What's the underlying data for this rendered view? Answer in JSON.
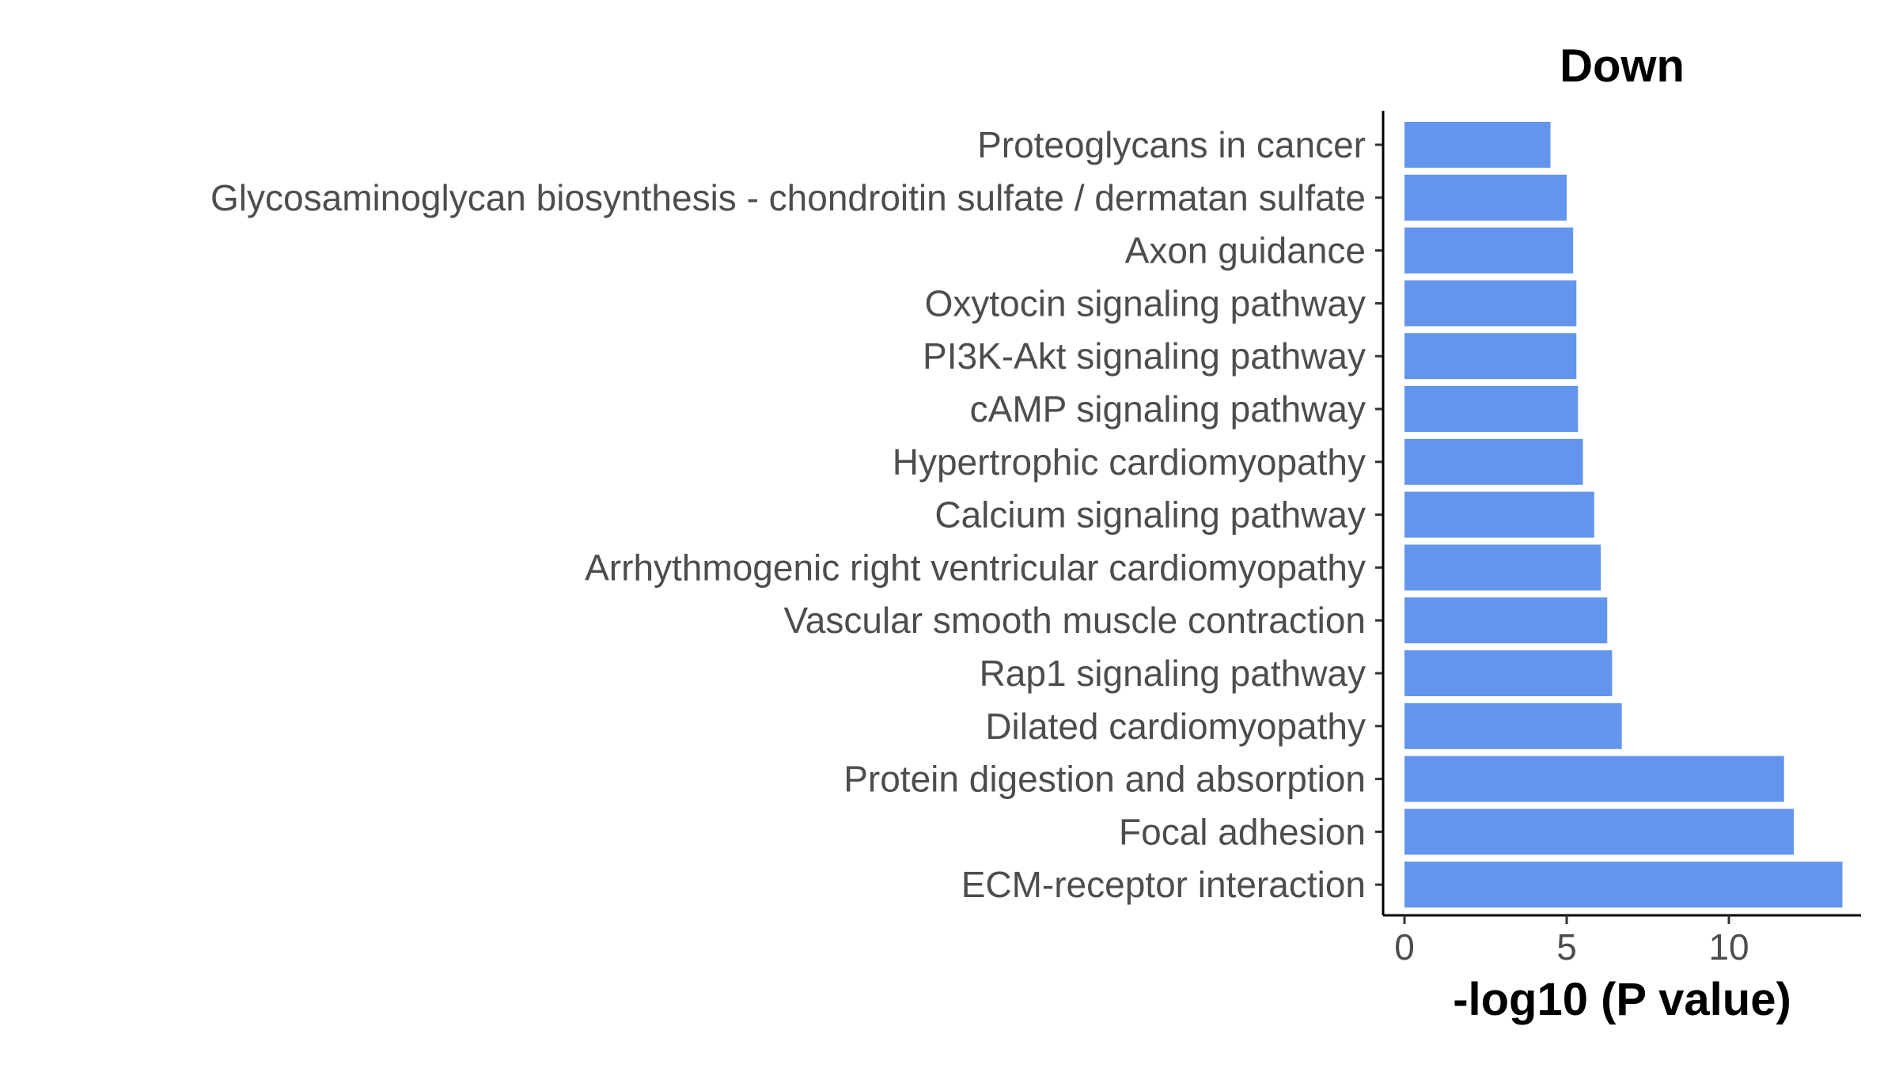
{
  "chart_data": {
    "type": "bar",
    "orientation": "horizontal",
    "title": "Down",
    "xlabel": "-log10 (P value)",
    "ylabel": "",
    "xlim": [
      0,
      13.8
    ],
    "xticks": [
      0,
      5,
      10
    ],
    "grid": false,
    "bar_color": "#6495ED",
    "categories": [
      "Proteoglycans in cancer",
      "Glycosaminoglycan biosynthesis - chondroitin sulfate / dermatan sulfate",
      "Axon guidance",
      "Oxytocin signaling pathway",
      "PI3K-Akt signaling pathway",
      "cAMP signaling pathway",
      "Hypertrophic cardiomyopathy",
      "Calcium signaling pathway",
      "Arrhythmogenic right ventricular cardiomyopathy",
      "Vascular smooth muscle contraction",
      "Rap1 signaling pathway",
      "Dilated cardiomyopathy",
      "Protein digestion and absorption",
      "Focal adhesion",
      "ECM-receptor interaction"
    ],
    "values": [
      4.5,
      5.0,
      5.2,
      5.3,
      5.3,
      5.35,
      5.5,
      5.85,
      6.05,
      6.25,
      6.4,
      6.7,
      11.7,
      12.0,
      13.5
    ]
  }
}
